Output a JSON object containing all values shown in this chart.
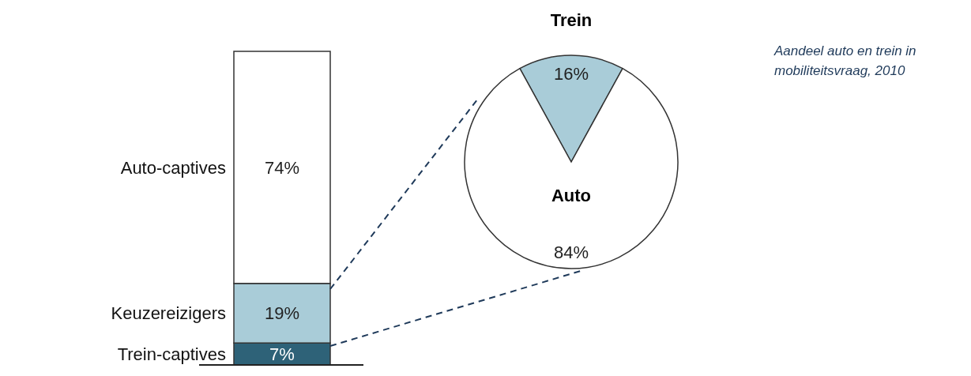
{
  "chart_data": [
    {
      "type": "bar",
      "stacked": true,
      "legend": "left",
      "categories": [
        null
      ],
      "series": [
        {
          "name": "Trein-captives",
          "color": "#2e6278",
          "values": [
            7
          ],
          "value_labels": [
            "7%"
          ]
        },
        {
          "name": "Keuzereizigers",
          "color": "#a9ccd8",
          "values": [
            19
          ],
          "value_labels": [
            "19%"
          ]
        },
        {
          "name": "Auto-captives",
          "color": "#ffffff",
          "values": [
            74
          ],
          "value_labels": [
            "74%"
          ]
        }
      ]
    },
    {
      "type": "pie",
      "annotations": [
        "Aandeel auto en trein in mobiliteitsvraag, 2010"
      ],
      "categories": [
        "Trein",
        "Auto"
      ],
      "values": [
        16,
        84
      ],
      "colors": [
        "#a9ccd8",
        "#ffffff"
      ],
      "value_labels": [
        "16%",
        "84%"
      ]
    }
  ]
}
